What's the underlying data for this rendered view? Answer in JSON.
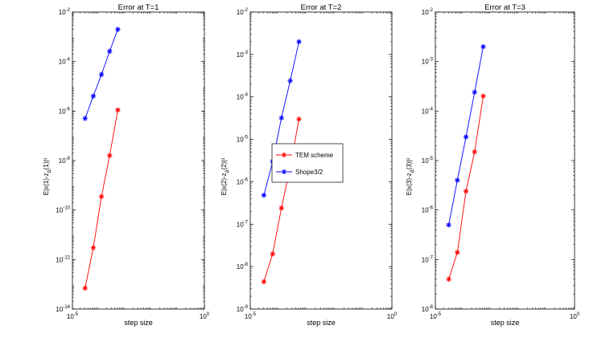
{
  "chart_data": [
    {
      "type": "line",
      "title": "Error at T=1",
      "xlabel": "step size",
      "ylabel": "E|x(1)-z_Δ(1)|³",
      "x_scale": "log",
      "y_scale": "log",
      "xlim": [
        1e-05,
        1
      ],
      "ylim": [
        1e-14,
        0.01
      ],
      "x_ticks": [
        {
          "value": 1e-05,
          "base": "10",
          "exp": "-5"
        },
        {
          "value": 1,
          "base": "10",
          "exp": "0"
        }
      ],
      "y_ticks": [
        {
          "value": 1e-14,
          "base": "10",
          "exp": "-14"
        },
        {
          "value": 1e-12,
          "base": "10",
          "exp": "-12"
        },
        {
          "value": 1e-10,
          "base": "10",
          "exp": "-10"
        },
        {
          "value": 1e-08,
          "base": "10",
          "exp": "-8"
        },
        {
          "value": 1e-06,
          "base": "10",
          "exp": "-6"
        },
        {
          "value": 0.0001,
          "base": "10",
          "exp": "-4"
        },
        {
          "value": 0.01,
          "base": "10",
          "exp": "-2"
        }
      ],
      "series": [
        {
          "color": "#ff0000",
          "x": [
            3.02e-05,
            6.17e-05,
            0.000126,
            0.000257,
            0.000525
          ],
          "y": [
            7e-14,
            3e-12,
            3.5e-10,
            1.6e-08,
            1.1e-06
          ]
        },
        {
          "color": "#0000ff",
          "x": [
            3.02e-05,
            6.17e-05,
            0.000126,
            0.000257,
            0.000525
          ],
          "y": [
            5e-07,
            4e-06,
            3e-05,
            0.00026,
            0.002
          ]
        }
      ]
    },
    {
      "type": "line",
      "title": "Error at T=2",
      "xlabel": "step size",
      "ylabel": "E|x(2)-z_Δ(2)|³",
      "x_scale": "log",
      "y_scale": "log",
      "xlim": [
        1e-05,
        1
      ],
      "ylim": [
        1e-09,
        0.01
      ],
      "x_ticks": [
        {
          "value": 1e-05,
          "base": "10",
          "exp": "-5"
        },
        {
          "value": 1,
          "base": "10",
          "exp": "0"
        }
      ],
      "y_ticks": [
        {
          "value": 1e-09,
          "base": "10",
          "exp": "-9"
        },
        {
          "value": 1e-08,
          "base": "10",
          "exp": "-8"
        },
        {
          "value": 1e-07,
          "base": "10",
          "exp": "-7"
        },
        {
          "value": 1e-06,
          "base": "10",
          "exp": "-6"
        },
        {
          "value": 1e-05,
          "base": "10",
          "exp": "-5"
        },
        {
          "value": 0.0001,
          "base": "10",
          "exp": "-4"
        },
        {
          "value": 0.001,
          "base": "10",
          "exp": "-3"
        },
        {
          "value": 0.01,
          "base": "10",
          "exp": "-2"
        }
      ],
      "legend": {
        "placement": "center",
        "entries": [
          {
            "label": "TEM scheme",
            "color": "#ff0000"
          },
          {
            "label": "Shope3/2",
            "color": "#0000ff"
          }
        ]
      },
      "series": [
        {
          "color": "#ff0000",
          "x": [
            3.02e-05,
            6.17e-05,
            0.000126,
            0.000257,
            0.000525
          ],
          "y": [
            4.4e-09,
            2e-08,
            2.4e-07,
            2.2e-06,
            3e-05
          ]
        },
        {
          "color": "#0000ff",
          "x": [
            3.02e-05,
            6.17e-05,
            0.000126,
            0.000257,
            0.000525
          ],
          "y": [
            4.8e-07,
            3e-06,
            3.2e-05,
            0.00024,
            0.002
          ]
        }
      ]
    },
    {
      "type": "line",
      "title": "Error at T=3",
      "xlabel": "step size",
      "ylabel": "E|x(3)-z_Δ(3)|³",
      "x_scale": "log",
      "y_scale": "log",
      "xlim": [
        1e-05,
        1
      ],
      "ylim": [
        1e-08,
        0.01
      ],
      "x_ticks": [
        {
          "value": 1e-05,
          "base": "10",
          "exp": "-5"
        },
        {
          "value": 1,
          "base": "10",
          "exp": "0"
        }
      ],
      "y_ticks": [
        {
          "value": 1e-08,
          "base": "10",
          "exp": "-8"
        },
        {
          "value": 1e-07,
          "base": "10",
          "exp": "-7"
        },
        {
          "value": 1e-06,
          "base": "10",
          "exp": "-6"
        },
        {
          "value": 1e-05,
          "base": "10",
          "exp": "-5"
        },
        {
          "value": 0.0001,
          "base": "10",
          "exp": "-4"
        },
        {
          "value": 0.001,
          "base": "10",
          "exp": "-3"
        },
        {
          "value": 0.01,
          "base": "10",
          "exp": "-2"
        }
      ],
      "series": [
        {
          "color": "#ff0000",
          "x": [
            3.02e-05,
            6.17e-05,
            0.000126,
            0.000257,
            0.000525
          ],
          "y": [
            4e-08,
            1.4e-07,
            2.4e-06,
            1.5e-05,
            0.0002
          ]
        },
        {
          "color": "#0000ff",
          "x": [
            3.02e-05,
            6.17e-05,
            0.000126,
            0.000257,
            0.000525
          ],
          "y": [
            5e-07,
            4e-06,
            3e-05,
            0.00024,
            0.002
          ]
        }
      ]
    }
  ]
}
